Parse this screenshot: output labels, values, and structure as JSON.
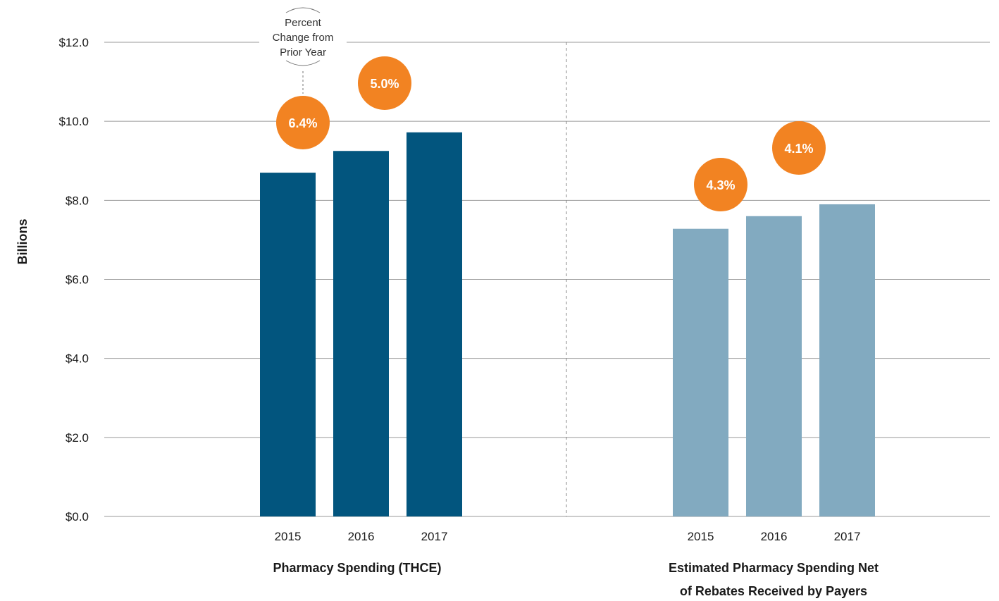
{
  "chart_data": {
    "type": "bar",
    "ylabel": "Billions",
    "ylim": [
      0,
      12
    ],
    "yticks": [
      0,
      2,
      4,
      6,
      8,
      10,
      12
    ],
    "ytick_labels": [
      "$0.0",
      "$2.0",
      "$4.0",
      "$6.0",
      "$8.0",
      "$10.0",
      "$12.0"
    ],
    "grid": true,
    "annotation": [
      "Percent",
      "Change from",
      "Prior Year"
    ],
    "groups": [
      {
        "label": [
          "Pharmacy Spending (THCE)"
        ],
        "categories": [
          "2015",
          "2016",
          "2017"
        ],
        "values": [
          8.7,
          9.25,
          9.72
        ],
        "color": "#02557e",
        "changes": [
          "",
          "6.4%",
          "5.0%"
        ]
      },
      {
        "label": [
          "Estimated Pharmacy Spending Net",
          "of Rebates Received by Payers"
        ],
        "categories": [
          "2015",
          "2016",
          "2017"
        ],
        "values": [
          7.28,
          7.6,
          7.9
        ],
        "color": "#82aac0",
        "changes": [
          "",
          "4.3%",
          "4.1%"
        ]
      }
    ],
    "bubble_color": "#f28322"
  }
}
